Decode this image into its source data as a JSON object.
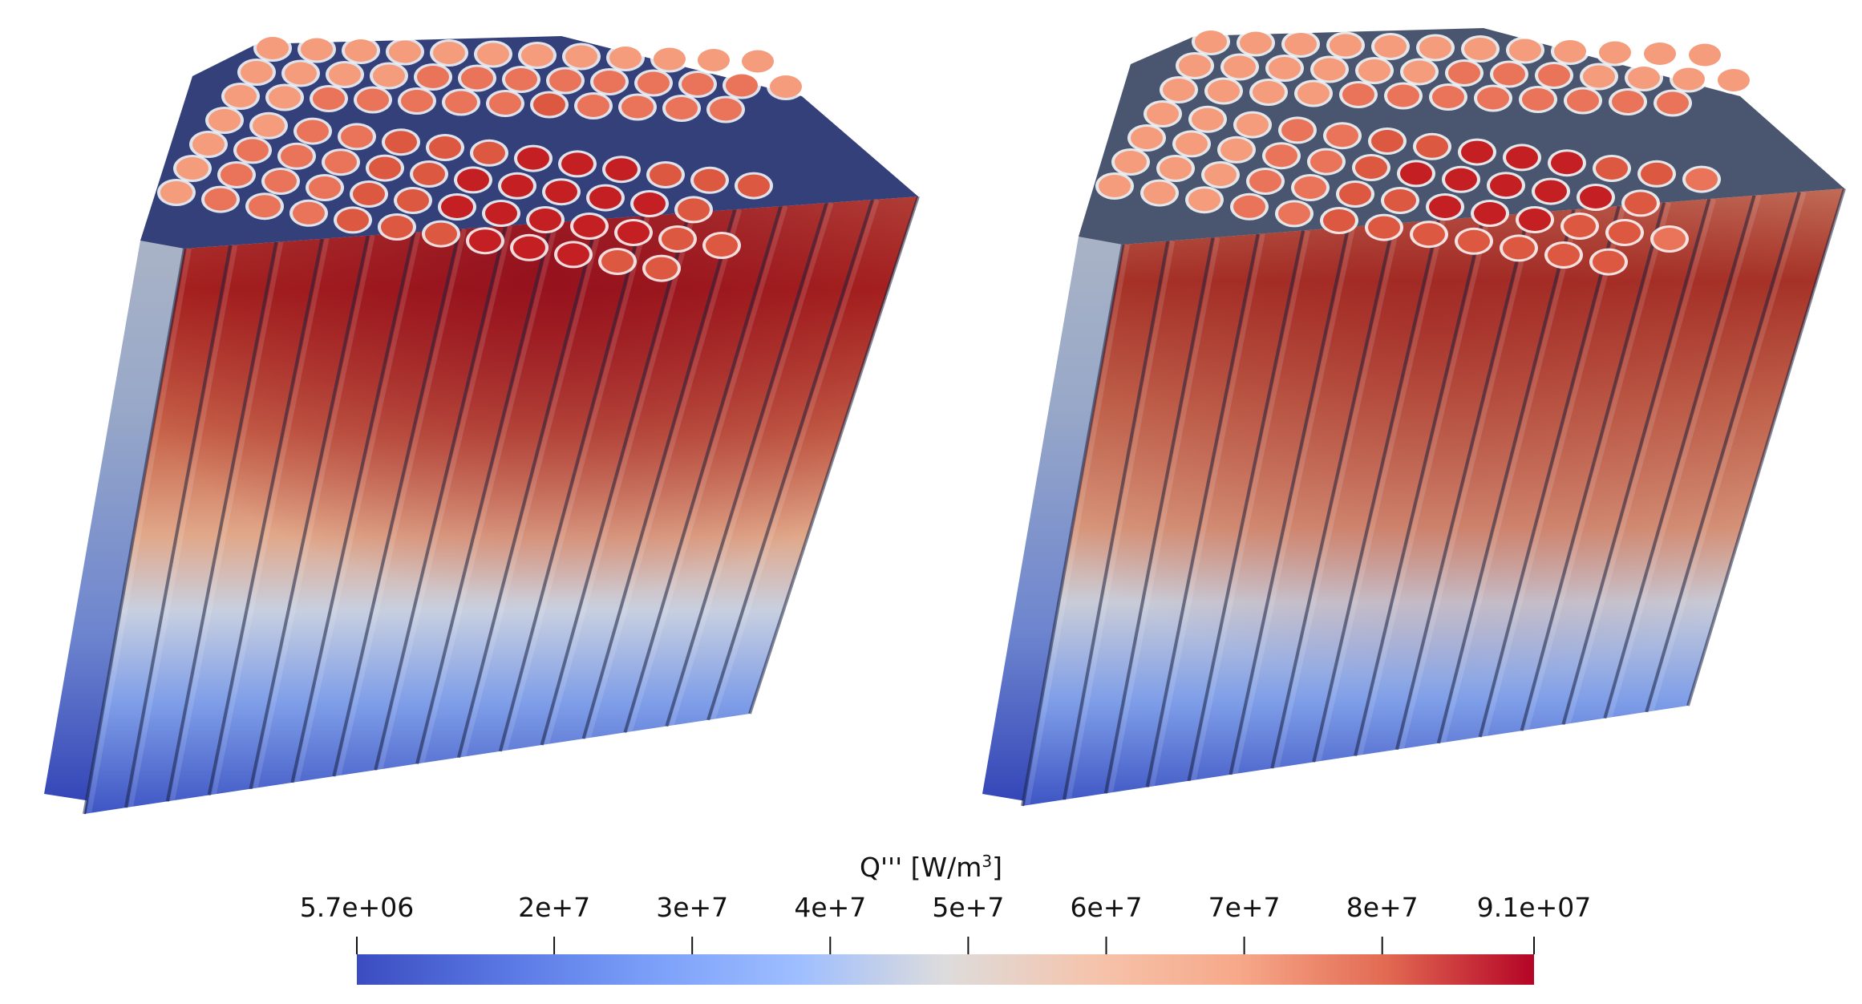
{
  "figure": {
    "panels": [
      {
        "name": "left-fuel-assembly",
        "hot_spot": "near-top-center"
      },
      {
        "name": "right-fuel-assembly",
        "hot_spot": "broad-upper-center"
      }
    ]
  },
  "colorbar": {
    "title": "Q''' [W/m",
    "title_sup": "3",
    "title_suffix": "]",
    "min_value": 5700000.0,
    "max_value": 91000000.0,
    "ticks": [
      {
        "value": 5700000.0,
        "label": "5.7e+06"
      },
      {
        "value": 20000000.0,
        "label": "2e+7"
      },
      {
        "value": 30000000.0,
        "label": "3e+7"
      },
      {
        "value": 40000000.0,
        "label": "4e+7"
      },
      {
        "value": 50000000.0,
        "label": "5e+7"
      },
      {
        "value": 60000000.0,
        "label": "6e+7"
      },
      {
        "value": 70000000.0,
        "label": "7e+7"
      },
      {
        "value": 80000000.0,
        "label": "8e+7"
      },
      {
        "value": 91000000.0,
        "label": "9.1e+07"
      }
    ],
    "colors": [
      "#3b4cc0",
      "#6788ee",
      "#9abbff",
      "#c9d7f0",
      "#dddcdc",
      "#f2cbb7",
      "#f7a889",
      "#e26952",
      "#b40426"
    ]
  }
}
